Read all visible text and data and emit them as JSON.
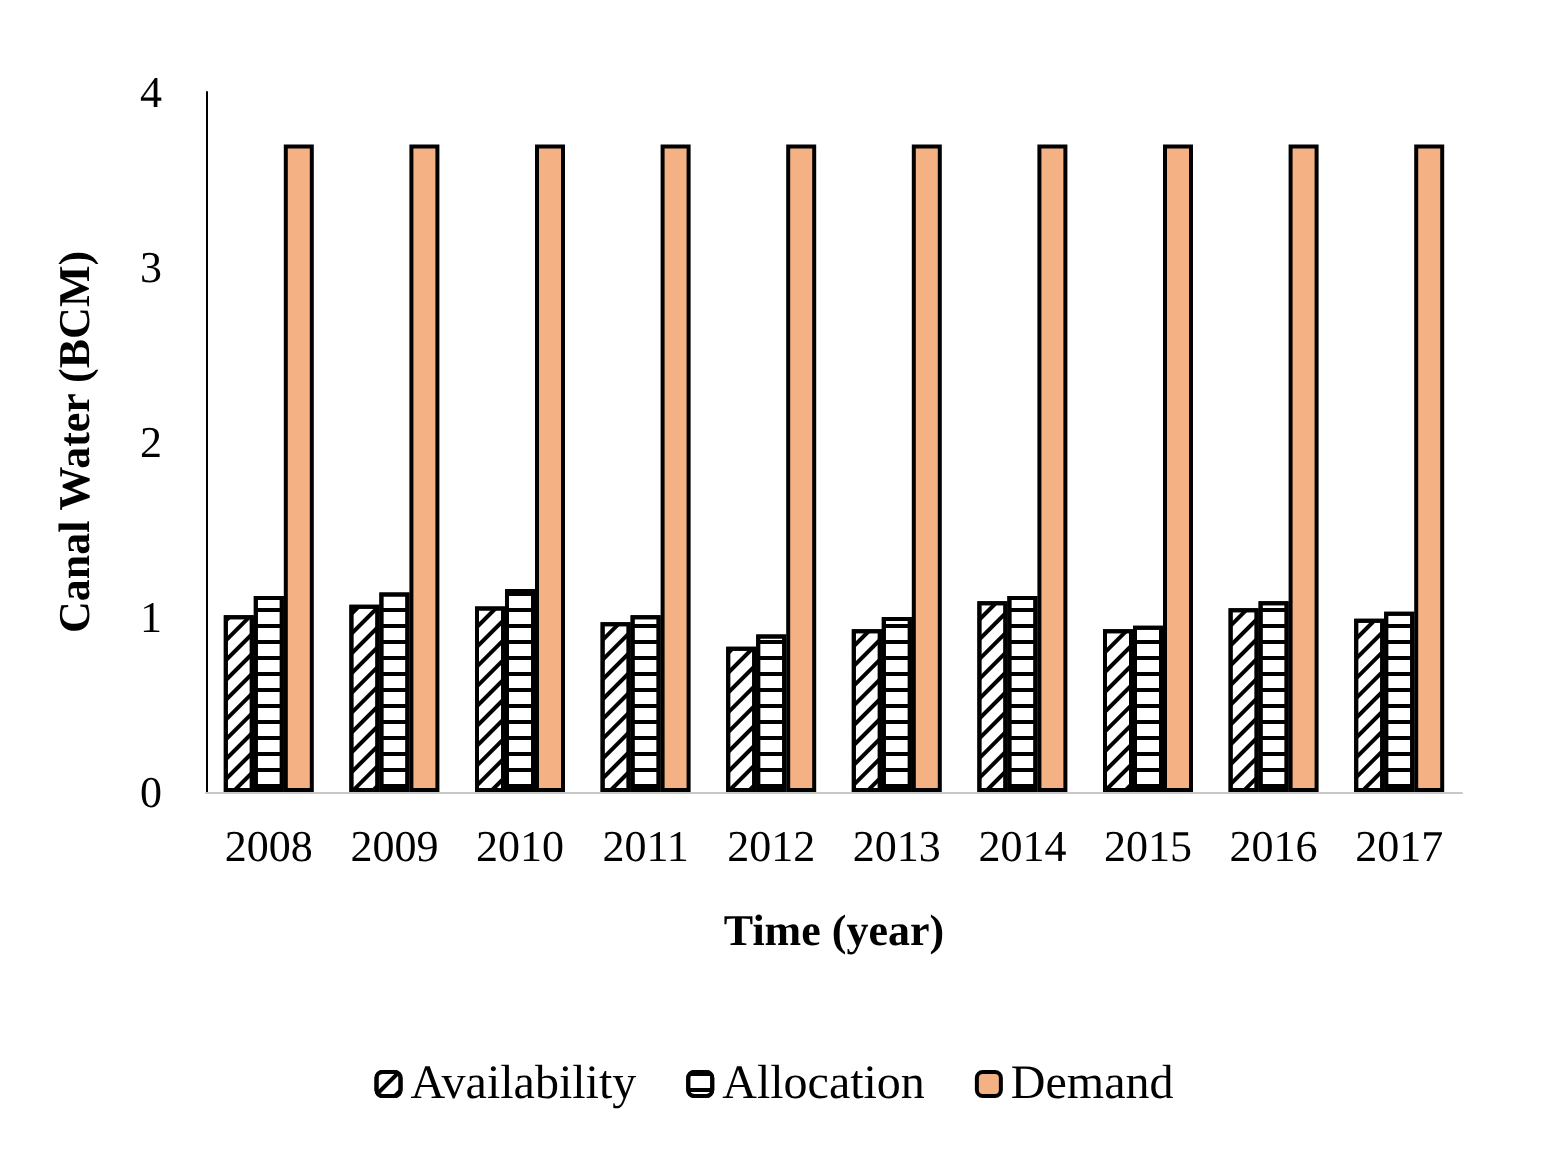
{
  "chart_data": {
    "type": "bar",
    "xlabel": "Time (year)",
    "ylabel": "Canal Water (BCM)",
    "categories": [
      "2008",
      "2009",
      "2010",
      "2011",
      "2012",
      "2013",
      "2014",
      "2015",
      "2016",
      "2017"
    ],
    "series": [
      {
        "name": "Availability",
        "color": "#ffffff",
        "values": [
          1.01,
          1.07,
          1.06,
          0.97,
          0.83,
          0.93,
          1.09,
          0.93,
          1.05,
          0.99
        ]
      },
      {
        "name": "Allocation",
        "color": "#ffffff",
        "values": [
          1.12,
          1.14,
          1.16,
          1.01,
          0.9,
          1.0,
          1.12,
          0.95,
          1.09,
          1.03
        ]
      },
      {
        "name": "Demand",
        "color": "#f4b183",
        "values": [
          3.7,
          3.7,
          3.7,
          3.7,
          3.7,
          3.7,
          3.7,
          3.7,
          3.7,
          3.7
        ]
      }
    ],
    "ylim": [
      0,
      4
    ],
    "yticks": [
      0,
      1,
      2,
      3,
      4
    ],
    "grid": false,
    "legend": "bottom"
  }
}
